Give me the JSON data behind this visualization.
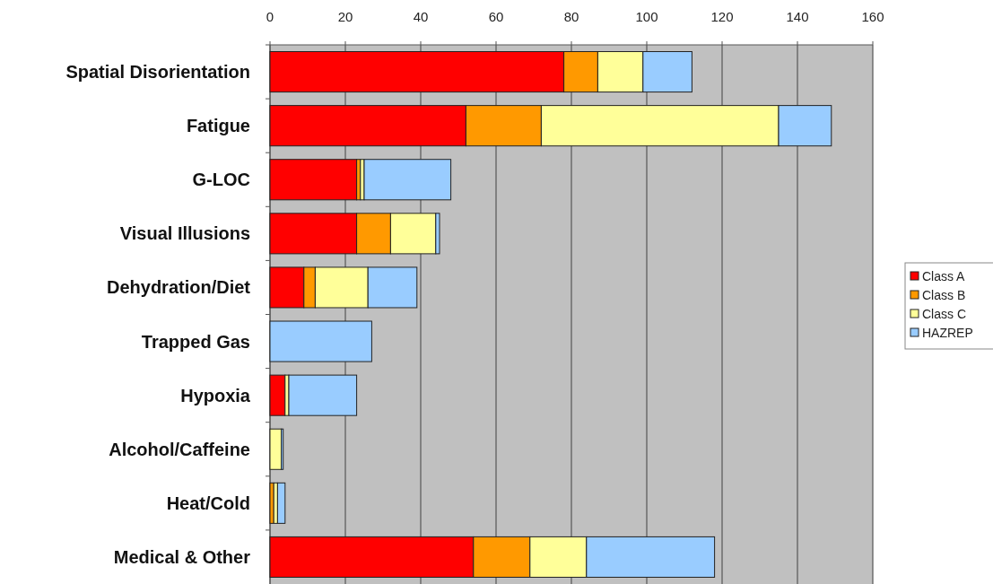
{
  "chart_data": {
    "type": "bar",
    "orientation": "horizontal",
    "stacked": true,
    "categories": [
      "Spatial Disorientation",
      "Fatigue",
      "G-LOC",
      "Visual Illusions",
      "Dehydration/Diet",
      "Trapped Gas",
      "Hypoxia",
      "Alcohol/Caffeine",
      "Heat/Cold",
      "Medical & Other"
    ],
    "series": [
      {
        "name": "Class A",
        "color": "#ff0000",
        "values": [
          78,
          52,
          23,
          23,
          9,
          0,
          4,
          0,
          0,
          54
        ]
      },
      {
        "name": "Class B",
        "color": "#ff9900",
        "values": [
          9,
          20,
          1,
          9,
          3,
          0,
          0,
          0,
          1,
          15
        ]
      },
      {
        "name": "Class C",
        "color": "#ffff99",
        "values": [
          12,
          63,
          1,
          12,
          14,
          0,
          1,
          3,
          1,
          15
        ]
      },
      {
        "name": "HAZREP",
        "color": "#99ccff",
        "values": [
          13,
          14,
          23,
          1,
          13,
          27,
          18,
          0.5,
          2,
          34
        ]
      }
    ],
    "xlim": [
      0,
      160
    ],
    "xticks": [
      0,
      20,
      40,
      60,
      80,
      100,
      120,
      140,
      160
    ],
    "grid": "x",
    "legend": "right"
  }
}
